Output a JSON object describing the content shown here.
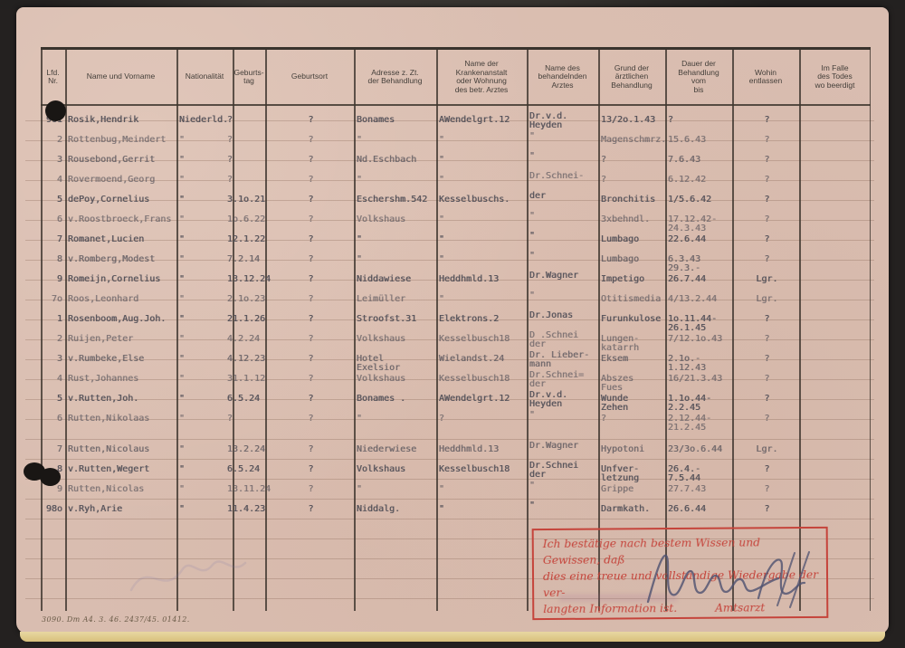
{
  "document": {
    "footer_print": "3090. Dm A4. 3. 46. 2437/45. 01412.",
    "columns": [
      "Lfd.\nNr.",
      "Name und Vorname",
      "Nationalität",
      "Geburts-\ntag",
      "Geburtsort",
      "Adresse z. Zt.\nder Behandlung",
      "Name der\nKrankenanstalt\noder Wohnung\ndes betr. Arztes",
      "Name des\nbehandelnden\nArztes",
      "Grund der\närztlichen\nBehandlung",
      "Dauer der\nBehandlung\nvom\nbis",
      "Wohin\nentlassen",
      "Im Falle\ndes Todes\nwo beerdigt"
    ],
    "rows": [
      [
        "961",
        "Rosik,Hendrik",
        "Niederld.",
        "?",
        "?",
        "Bonames",
        "AWendelgrt.12",
        "Dr.v.d.\nHeyden",
        "13/2o.1.43",
        "?",
        "?",
        ""
      ],
      [
        "2",
        "Rottenbug,Meindert",
        "\"",
        "?",
        "?",
        "\"",
        "\"",
        "\"",
        "Magenschmrz.",
        "15.6.43",
        "?",
        ""
      ],
      [
        "3",
        "Rousebond,Gerrit",
        "\"",
        "?",
        "?",
        "Nd.Eschbach",
        "\"",
        "\"",
        "?",
        "7.6.43",
        "?",
        ""
      ],
      [
        "4",
        "Rovermoend,Georg",
        "\"",
        "?",
        "?",
        "\"",
        "\"",
        "Dr.Schnei-",
        "?",
        "6.12.42",
        "?",
        ""
      ],
      [
        "5",
        "dePoy,Cornelius",
        "\"",
        "3.1o.21",
        "?",
        "Eschershm.542",
        "Kesselbuschs.",
        "der",
        "Bronchitis",
        "1/5.6.42",
        "?",
        ""
      ],
      [
        "6",
        "v.Roostbroeck,Frans",
        "\"",
        "1o.6.22",
        "?",
        "Volkshaus",
        "\"",
        "\"",
        "3xbehndl.",
        "17.12.42-\n24.3.43",
        "?",
        ""
      ],
      [
        "7",
        "Romanet,Lucien",
        "\"",
        "12.1.22",
        "?",
        "\"",
        "\"",
        "\"",
        "Lumbago",
        "22.6.44",
        "?",
        ""
      ],
      [
        "8",
        "v.Romberg,Modest",
        "\"",
        "7.2.14",
        "?",
        "\"",
        "\"",
        "\"",
        "Lumbago",
        "6.3.43\n29.3.-",
        "?",
        ""
      ],
      [
        "9",
        "Romeijn,Cornelius",
        "\"",
        "13.12.24",
        "?",
        "Niddawiese",
        "Heddhmld.13",
        "Dr.Wagner",
        "Impetigo",
        "26.7.44",
        "Lgr.",
        ""
      ],
      [
        "7o",
        "Roos,Leonhard",
        "\"",
        "2.1o.23",
        "?",
        "Leimüller",
        "\"",
        "\"",
        "Otitismedia",
        "4/13.2.44",
        "Lgr.",
        ""
      ],
      [
        "1",
        "Rosenboom,Aug.Joh.",
        "\"",
        "21.1.26",
        "?",
        "Stroofst.31",
        "Elektrons.2",
        "Dr.Jonas",
        "Furunkulose",
        "1o.11.44-\n26.1.45",
        "?",
        ""
      ],
      [
        "2",
        "Ruijen,Peter",
        "\"",
        "4.2.24",
        "?",
        "Volkshaus",
        "Kesselbusch18",
        "D .Schnei\nder",
        "Lungen-\nkatarrh",
        "7/12.1o.43",
        "?",
        ""
      ],
      [
        "3",
        "v.Rumbeke,Else",
        "\"",
        "4.12.23",
        "?",
        "Hotel\nExelsior",
        "Wielandst.24",
        "Dr. Lieber-\nmann",
        "Eksem",
        "2.1o.-\n1.12.43",
        "?",
        ""
      ],
      [
        "4",
        "Rust,Johannes",
        "\"",
        "31.1.12",
        "?",
        "Volkshaus",
        "Kesselbusch18",
        "Dr.Schnei=\nder",
        "Abszes\nFues",
        "16/21.3.43",
        "?",
        ""
      ],
      [
        "5",
        "v.Rutten,Joh.",
        "\"",
        "6.5.24",
        "?",
        "Bonames .",
        "AWendelgrt.12",
        "Dr.v.d.\nHeyden",
        "Wunde\nZehen",
        "1.1o.44-\n2.2.45",
        "?",
        ""
      ],
      [
        "6",
        "Rutten,Nikolaas",
        "\"",
        "?",
        "?",
        "\"",
        "?",
        "\"",
        "?",
        "2.12.44-\n21.2.45",
        "?",
        ""
      ],
      [
        "7",
        "Rutten,Nicolaus",
        "\"",
        "13.2.24",
        "?",
        "Niederwiese",
        "Heddhmld.13",
        "Dr.Wagner",
        "Hypotoni",
        "23/3o.6.44",
        "Lgr.",
        ""
      ],
      [
        "8",
        "v.Rutten,Wegert",
        "\"",
        "6.5.24",
        "?",
        "Volkshaus",
        "Kesselbusch18",
        "Dr.Schnei\nder",
        "Unfver-\nletzung",
        "26.4.-\n7.5.44",
        "?",
        ""
      ],
      [
        "9",
        "Rutten,Nicolas",
        "\"",
        "13.11.24",
        "?",
        "\"",
        "\"",
        "\"",
        "Grippe",
        "27.7.43",
        "?",
        ""
      ],
      [
        "98o",
        "v.Ryh,Arie",
        "\"",
        "11.4.23",
        "?",
        "Niddalg.",
        "\"",
        "\"",
        "Darmkath.",
        "26.6.44",
        "?",
        ""
      ]
    ],
    "stamp": {
      "line1": "Ich bestätige nach bestem Wissen und Gewissen, daß",
      "line2": "dies eine treue und vollständige Wiedergabe der ver-",
      "line3": "langten Information ist.",
      "signer_title": "Amtsarzt"
    },
    "colors": {
      "card": "#d9bdb0",
      "stamp_red": "#c5443b",
      "typewriter_ink": "#55525a",
      "background": "#242120"
    }
  }
}
